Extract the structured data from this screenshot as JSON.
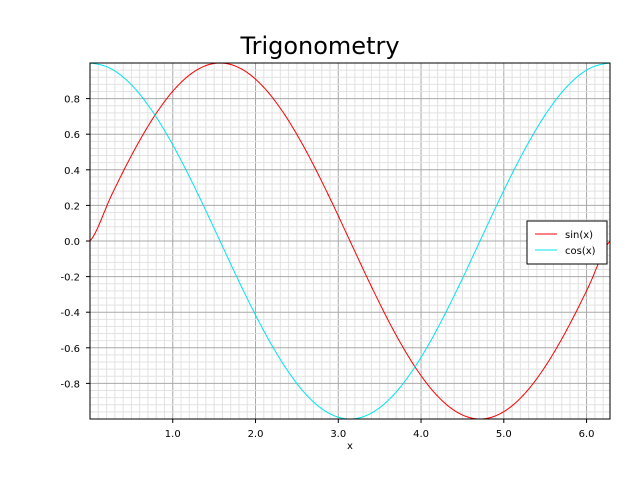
{
  "chart_data": {
    "type": "line",
    "title": "Trigonometry",
    "xlabel": "x",
    "ylabel": "",
    "xlim": [
      0.0,
      6.2832
    ],
    "ylim": [
      -1.0,
      1.0
    ],
    "xticks": [
      1.0,
      2.0,
      3.0,
      4.0,
      5.0,
      6.0
    ],
    "xtick_labels": [
      "1.0",
      "2.0",
      "3.0",
      "4.0",
      "5.0",
      "6.0"
    ],
    "yticks": [
      0.8,
      0.6,
      0.4,
      0.2,
      0.0,
      -0.2,
      -0.4,
      -0.6,
      -0.8
    ],
    "ytick_labels": [
      "0.8",
      "0.6",
      "0.4",
      "0.2",
      "0.0",
      "-0.2",
      "-0.4",
      "-0.6",
      "-0.8"
    ],
    "grid": "major and minor",
    "legend_position": "right",
    "x": [
      0.0,
      0.2618,
      0.5236,
      0.7854,
      1.0472,
      1.309,
      1.5708,
      1.8326,
      2.0944,
      2.3562,
      2.618,
      2.8798,
      3.1416,
      3.4034,
      3.6652,
      3.927,
      4.1888,
      4.4506,
      4.7124,
      4.9742,
      5.236,
      5.4978,
      5.7596,
      6.0214,
      6.2832
    ],
    "series": [
      {
        "name": "sin(x)",
        "color": "#ff0000",
        "values": [
          0.0,
          0.259,
          0.5,
          0.707,
          0.866,
          0.966,
          1.0,
          0.966,
          0.866,
          0.707,
          0.5,
          0.259,
          0.0,
          -0.259,
          -0.5,
          -0.707,
          -0.866,
          -0.966,
          -1.0,
          -0.966,
          -0.866,
          -0.707,
          -0.5,
          -0.259,
          0.0
        ]
      },
      {
        "name": "cos(x)",
        "color": "#00e5ee",
        "values": [
          1.0,
          0.966,
          0.866,
          0.707,
          0.5,
          0.259,
          0.0,
          -0.259,
          -0.5,
          -0.707,
          -0.866,
          -0.966,
          -1.0,
          -0.966,
          -0.866,
          -0.707,
          -0.5,
          -0.259,
          0.0,
          0.259,
          0.5,
          0.707,
          0.866,
          0.966,
          1.0
        ]
      }
    ]
  }
}
